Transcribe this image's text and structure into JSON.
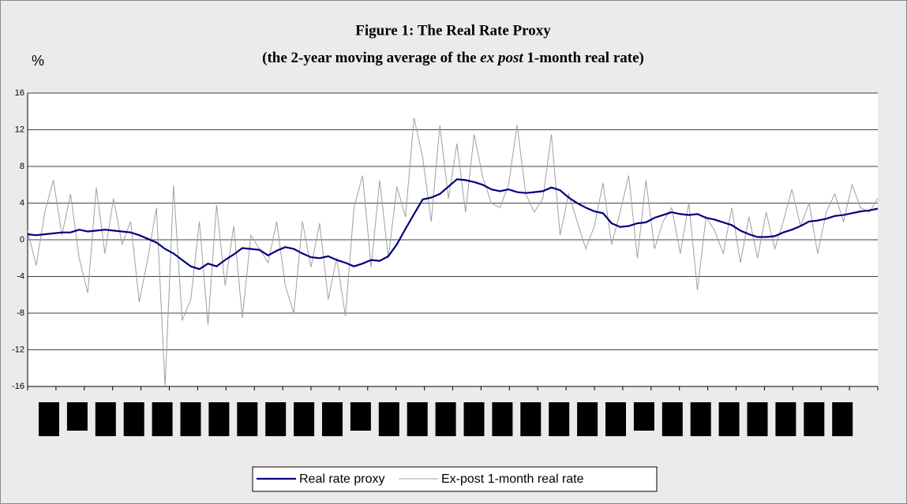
{
  "chart_data": {
    "type": "line",
    "title": "Figure 1: The Real Rate Proxy",
    "subtitle": [
      "(the 2-year moving average of the ",
      "ex post",
      " 1-month real rate)"
    ],
    "y_label": "%",
    "ylim": [
      -16,
      16
    ],
    "yticks": [
      -16,
      -12,
      -8,
      -4,
      0,
      4,
      8,
      12,
      16
    ],
    "grid": true,
    "legend": "bottom",
    "series": [
      {
        "name": "Real rate proxy",
        "color": "#000080",
        "values": [
          0.6,
          0.5,
          0.6,
          0.7,
          0.8,
          0.8,
          1.1,
          0.9,
          1.0,
          1.1,
          1.0,
          0.9,
          0.8,
          0.5,
          0.1,
          -0.3,
          -1.0,
          -1.5,
          -2.2,
          -2.9,
          -3.2,
          -2.6,
          -2.9,
          -2.2,
          -1.6,
          -0.9,
          -1.0,
          -1.1,
          -1.7,
          -1.2,
          -0.8,
          -1.0,
          -1.5,
          -1.9,
          -2.0,
          -1.8,
          -2.2,
          -2.5,
          -2.9,
          -2.6,
          -2.2,
          -2.3,
          -1.8,
          -0.5,
          1.2,
          2.8,
          4.4,
          4.6,
          5.0,
          5.8,
          6.6,
          6.5,
          6.3,
          6.0,
          5.5,
          5.3,
          5.5,
          5.2,
          5.1,
          5.2,
          5.3,
          5.7,
          5.4,
          4.6,
          4.0,
          3.5,
          3.1,
          2.9,
          1.8,
          1.4,
          1.5,
          1.8,
          1.9,
          2.4,
          2.7,
          3.0,
          2.8,
          2.7,
          2.8,
          2.4,
          2.2,
          1.9,
          1.6,
          1.0,
          0.6,
          0.3,
          0.3,
          0.4,
          0.8,
          1.1,
          1.5,
          2.0,
          2.1,
          2.3,
          2.6,
          2.7,
          2.9,
          3.1,
          3.2,
          3.4
        ]
      },
      {
        "name": "Ex-post 1-month real rate",
        "color": "#a0a0a0",
        "values": [
          1.0,
          -2.8,
          3.0,
          6.5,
          0.5,
          5.0,
          -2.0,
          -5.8,
          5.7,
          -1.5,
          4.5,
          -0.5,
          2.0,
          -6.8,
          -2.0,
          3.5,
          -16,
          5.9,
          -8.8,
          -6.5,
          2.0,
          -9.3,
          3.8,
          -5.0,
          1.5,
          -8.5,
          0.5,
          -1.0,
          -2.5,
          2.0,
          -5.0,
          -8.0,
          2.0,
          -3.0,
          1.8,
          -6.5,
          -2.0,
          -8.3,
          3.5,
          7.0,
          -3.0,
          6.5,
          -2.0,
          5.8,
          2.5,
          13.3,
          9.0,
          2.0,
          12.5,
          4.5,
          10.5,
          3.0,
          11.5,
          6.8,
          4.0,
          3.5,
          6.0,
          12.5,
          5.0,
          3.0,
          4.5,
          11.5,
          0.5,
          5.0,
          2.0,
          -1.0,
          1.5,
          6.2,
          -0.5,
          3.0,
          7.0,
          -2.0,
          6.5,
          -1.0,
          2.0,
          3.5,
          -1.5,
          4.0,
          -5.5,
          2.5,
          1.0,
          -1.5,
          3.5,
          -2.5,
          2.5,
          -2.0,
          3.0,
          -1.0,
          2.0,
          5.5,
          1.5,
          4.0,
          -1.5,
          3.0,
          5.0,
          2.0,
          6.0,
          3.5,
          3.0,
          4.5
        ]
      }
    ]
  }
}
